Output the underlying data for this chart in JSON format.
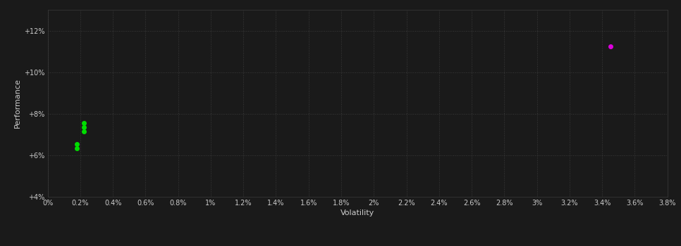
{
  "background_color": "#1a1a1a",
  "plot_bg_color": "#1a1a1a",
  "grid_color": "#3a3a3a",
  "text_color": "#cccccc",
  "xlabel": "Volatility",
  "ylabel": "Performance",
  "xlim": [
    0,
    0.038
  ],
  "ylim": [
    0.04,
    0.13
  ],
  "yticks": [
    0.04,
    0.06,
    0.08,
    0.1,
    0.12
  ],
  "ytick_labels": [
    "+4%",
    "+6%",
    "+8%",
    "+10%",
    "+12%"
  ],
  "xticks": [
    0.0,
    0.002,
    0.004,
    0.006,
    0.008,
    0.01,
    0.012,
    0.014,
    0.016,
    0.018,
    0.02,
    0.022,
    0.024,
    0.026,
    0.028,
    0.03,
    0.032,
    0.034,
    0.036,
    0.038
  ],
  "xtick_labels": [
    "0%",
    "0.2%",
    "0.4%",
    "0.6%",
    "0.8%",
    "1%",
    "1.2%",
    "1.4%",
    "1.6%",
    "1.8%",
    "2%",
    "2.2%",
    "2.4%",
    "2.6%",
    "2.8%",
    "3%",
    "3.2%",
    "3.4%",
    "3.6%",
    "3.8%"
  ],
  "green_points": [
    [
      0.0018,
      0.0655
    ],
    [
      0.0018,
      0.0635
    ],
    [
      0.0022,
      0.0755
    ],
    [
      0.0022,
      0.0735
    ],
    [
      0.0022,
      0.0715
    ]
  ],
  "magenta_points": [
    [
      0.0345,
      0.1125
    ]
  ],
  "green_color": "#00dd00",
  "magenta_color": "#dd00dd",
  "marker_size": 4
}
